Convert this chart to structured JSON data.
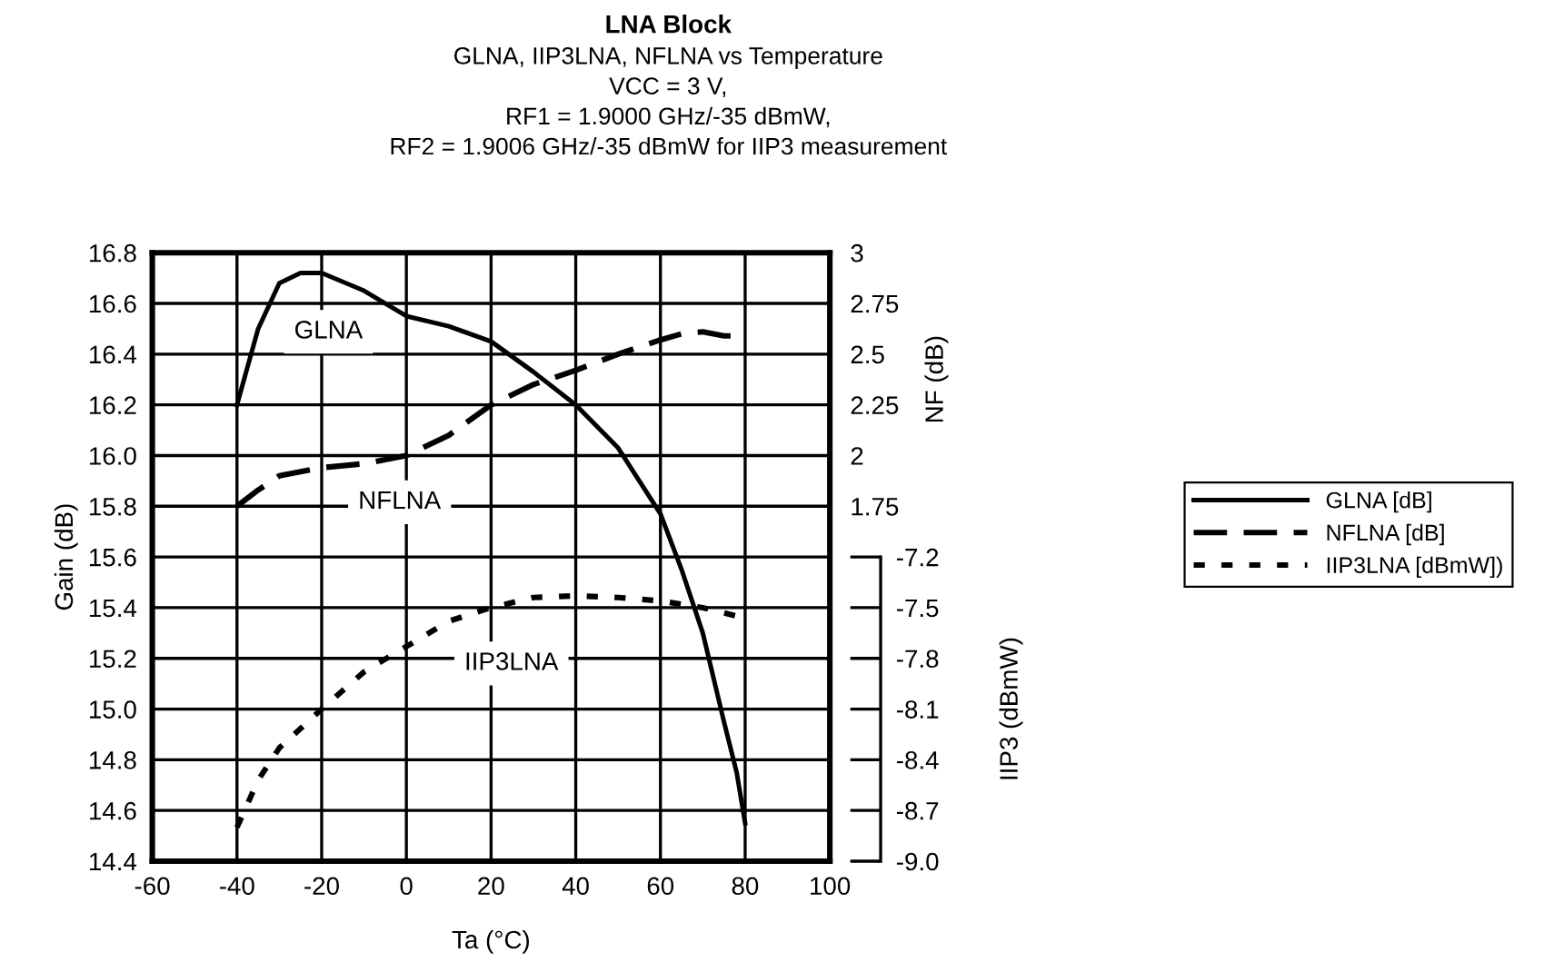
{
  "chart_data": {
    "type": "line",
    "title": "LNA Block",
    "subtitle": "GLNA, IIP3LNA, NFLNA vs Temperature\nVCC = 3 V,\nRF1 = 1.9000 GHz/-35 dBmW,\nRF2 = 1.9006 GHz/-35 dBmW for IIP3 measurement",
    "xlabel": "Ta (°C)",
    "ylabel": "Gain (dB)",
    "y2label": "NF (dB)",
    "y3label": "IIP3 (dBmW)",
    "annotations": [
      "GLNA",
      "NFLNA",
      "IIP3LNA"
    ],
    "x": [
      -40,
      -35,
      -30,
      -25,
      -20,
      -10,
      0,
      10,
      20,
      30,
      40,
      50,
      60,
      65,
      70,
      75,
      78,
      80
    ],
    "series": [
      {
        "name": "GLNA [dB]",
        "color": "#000000",
        "line_style": "solid",
        "axis": "y",
        "values": [
          16.2,
          16.5,
          16.68,
          16.72,
          16.72,
          16.65,
          16.55,
          16.51,
          16.45,
          16.33,
          16.2,
          16.03,
          15.77,
          15.55,
          15.3,
          14.95,
          14.75,
          14.55
        ]
      },
      {
        "name": "NFLNA [dB]",
        "color": "#000000",
        "line_style": "dashed",
        "axis": "y2",
        "values": [
          1.75,
          1.83,
          1.9,
          1.92,
          1.94,
          1.96,
          2.0,
          2.1,
          2.25,
          2.35,
          2.42,
          2.5,
          2.57,
          2.6,
          2.61,
          2.59,
          2.59,
          2.58
        ]
      },
      {
        "name": "IIP3LNA [dBmW])",
        "color": "#000000",
        "line_style": "dotted",
        "axis": "y3",
        "x": [
          -40,
          -35,
          -30,
          -20,
          -10,
          0,
          10,
          20,
          30,
          40,
          50,
          60,
          70,
          78
        ],
        "values": [
          -8.8,
          -8.52,
          -8.33,
          -8.1,
          -7.88,
          -7.73,
          -7.58,
          -7.5,
          -7.44,
          -7.43,
          -7.44,
          -7.46,
          -7.5,
          -7.55
        ]
      }
    ],
    "xlim": [
      -60,
      100
    ],
    "xticks": [
      -60,
      -40,
      -20,
      0,
      20,
      40,
      60,
      80,
      100
    ],
    "ylim": [
      14.4,
      16.8
    ],
    "yticks": [
      {
        "value": 14.4,
        "label": "14.4"
      },
      {
        "value": 14.6,
        "label": "14.6"
      },
      {
        "value": 14.8,
        "label": "14.8"
      },
      {
        "value": 15.0,
        "label": "15.0"
      },
      {
        "value": 15.2,
        "label": "15.2"
      },
      {
        "value": 15.4,
        "label": "15.4"
      },
      {
        "value": 15.6,
        "label": "15.6"
      },
      {
        "value": 15.8,
        "label": "15.8"
      },
      {
        "value": 16.0,
        "label": "16.0"
      },
      {
        "value": 16.2,
        "label": "16.2"
      },
      {
        "value": 16.4,
        "label": "16.4"
      },
      {
        "value": 16.6,
        "label": "16.6"
      },
      {
        "value": 16.8,
        "label": "16.8"
      }
    ],
    "y2lim": [
      0,
      3
    ],
    "y2ticks": [
      1.75,
      2,
      2.25,
      2.5,
      2.75,
      3
    ],
    "y3lim": [
      -9.0,
      -5.4
    ],
    "y3ticks": [
      {
        "value": -9.0,
        "label": "-9.0"
      },
      {
        "value": -8.7,
        "label": "-8.7"
      },
      {
        "value": -8.4,
        "label": "-8.4"
      },
      {
        "value": -8.1,
        "label": "-8.1"
      },
      {
        "value": -7.8,
        "label": "-7.8"
      },
      {
        "value": -7.5,
        "label": "-7.5"
      },
      {
        "value": -7.2,
        "label": "-7.2"
      }
    ],
    "grid": true,
    "legend": "right",
    "marker": "none"
  }
}
